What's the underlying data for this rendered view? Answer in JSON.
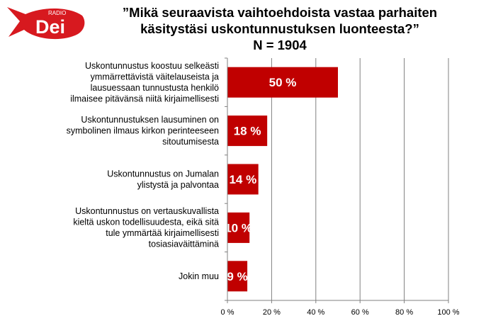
{
  "logo": {
    "top_text": "RADIO",
    "brand_text": "Dei",
    "color": "#d7191f"
  },
  "header": {
    "title_line1": "”Mikä seuraavista vaihtoehdoista vastaa parhaiten",
    "title_line2": "käsitystäsi uskontunnustuksen luonteesta?”",
    "title_line3": "N = 1904"
  },
  "chart_data": {
    "type": "bar",
    "orientation": "horizontal",
    "title": "”Mikä seuraavista vaihtoehdoista vastaa parhaiten käsitystäsi uskontunnustuksen luonteesta?” N = 1904",
    "categories": [
      [
        "Uskontunnustus koostuu selkeästi",
        "ymmärrettävistä väitelauseista ja",
        "lausuessaan tunnustusta henkilö",
        "ilmaisee pitävänsä niitä kirjaimellisesti"
      ],
      [
        "Uskontunnustuksen lausuminen on",
        "symbolinen ilmaus kirkon perinteeseen",
        "sitoutumisesta"
      ],
      [
        "Uskontunnustus on Jumalan",
        "ylistystä ja palvontaa"
      ],
      [
        "Uskontunnustus on vertauskuvallista",
        "kieltä uskon todellisuudesta, eikä sitä",
        "tule ymmärtää kirjaimellisesti",
        "tosiasiaväittäminä"
      ],
      [
        "Jokin muu"
      ]
    ],
    "values": [
      50,
      18,
      14,
      10,
      9
    ],
    "value_labels": [
      "50 %",
      "18 %",
      "14 %",
      "10 %",
      "9 %"
    ],
    "xlim": [
      0,
      100
    ],
    "xticks": [
      0,
      20,
      40,
      60,
      80,
      100
    ],
    "xtick_labels": [
      "0 %",
      "20 %",
      "40 %",
      "60 %",
      "80 %",
      "100 %"
    ],
    "grid": true,
    "bar_color": "#c00000",
    "grid_color": "#808080"
  }
}
